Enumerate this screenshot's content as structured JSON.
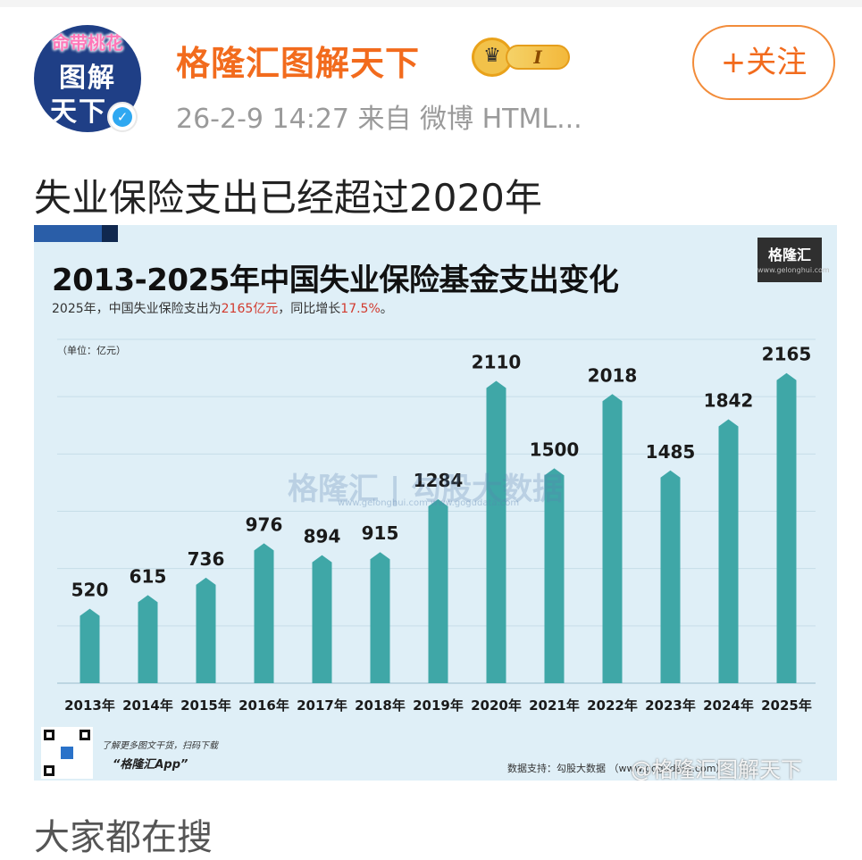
{
  "header": {
    "avatar_tag": "命带桃花",
    "avatar_line1": "图解",
    "avatar_line2": "天下",
    "username": "格隆汇图解天下",
    "level_badge": "I",
    "meta": "26-2-9 14:27  来自 微博 HTML...",
    "follow_label": "+关注",
    "verified_icon": "check-icon"
  },
  "post": {
    "text": "失业保险支出已经超过2020年"
  },
  "figure": {
    "title": "2013-2025年中国失业保险基金支出变化",
    "subtitle_prefix": "2025年，中国失业保险支出为",
    "subtitle_amount": "2165亿元",
    "subtitle_middle": "，同比增长",
    "subtitle_growth": "17.5%",
    "subtitle_end": "。",
    "brand_name": "格隆汇",
    "brand_url": "www.gelonghui.com",
    "unit_label": "（单位：亿元）",
    "center_watermark": "格隆汇 | 勾股大数据",
    "center_watermark_url": "www.gelonghui.com   www.gogudata.com",
    "footer_note": "了解更多图文干货，扫码下载",
    "footer_app": "“格隆汇App”",
    "footer_source": "数据支持：勾股大数据   （www.gogudata.com）",
    "weibo_watermark": "@格隆汇图解天下"
  },
  "chart_data": {
    "type": "bar",
    "title": "2013-2025年中国失业保险基金支出变化",
    "ylabel": "（单位：亿元）",
    "categories": [
      "2013年",
      "2014年",
      "2015年",
      "2016年",
      "2017年",
      "2018年",
      "2019年",
      "2020年",
      "2021年",
      "2022年",
      "2023年",
      "2024年",
      "2025年"
    ],
    "values": [
      520,
      615,
      736,
      976,
      894,
      915,
      1284,
      2110,
      1500,
      2018,
      1485,
      1842,
      2165
    ],
    "ylim": [
      0,
      2400
    ],
    "grid": true,
    "bar_color": "#3fa7a7"
  },
  "footer": {
    "search_heading": "大家都在搜"
  }
}
